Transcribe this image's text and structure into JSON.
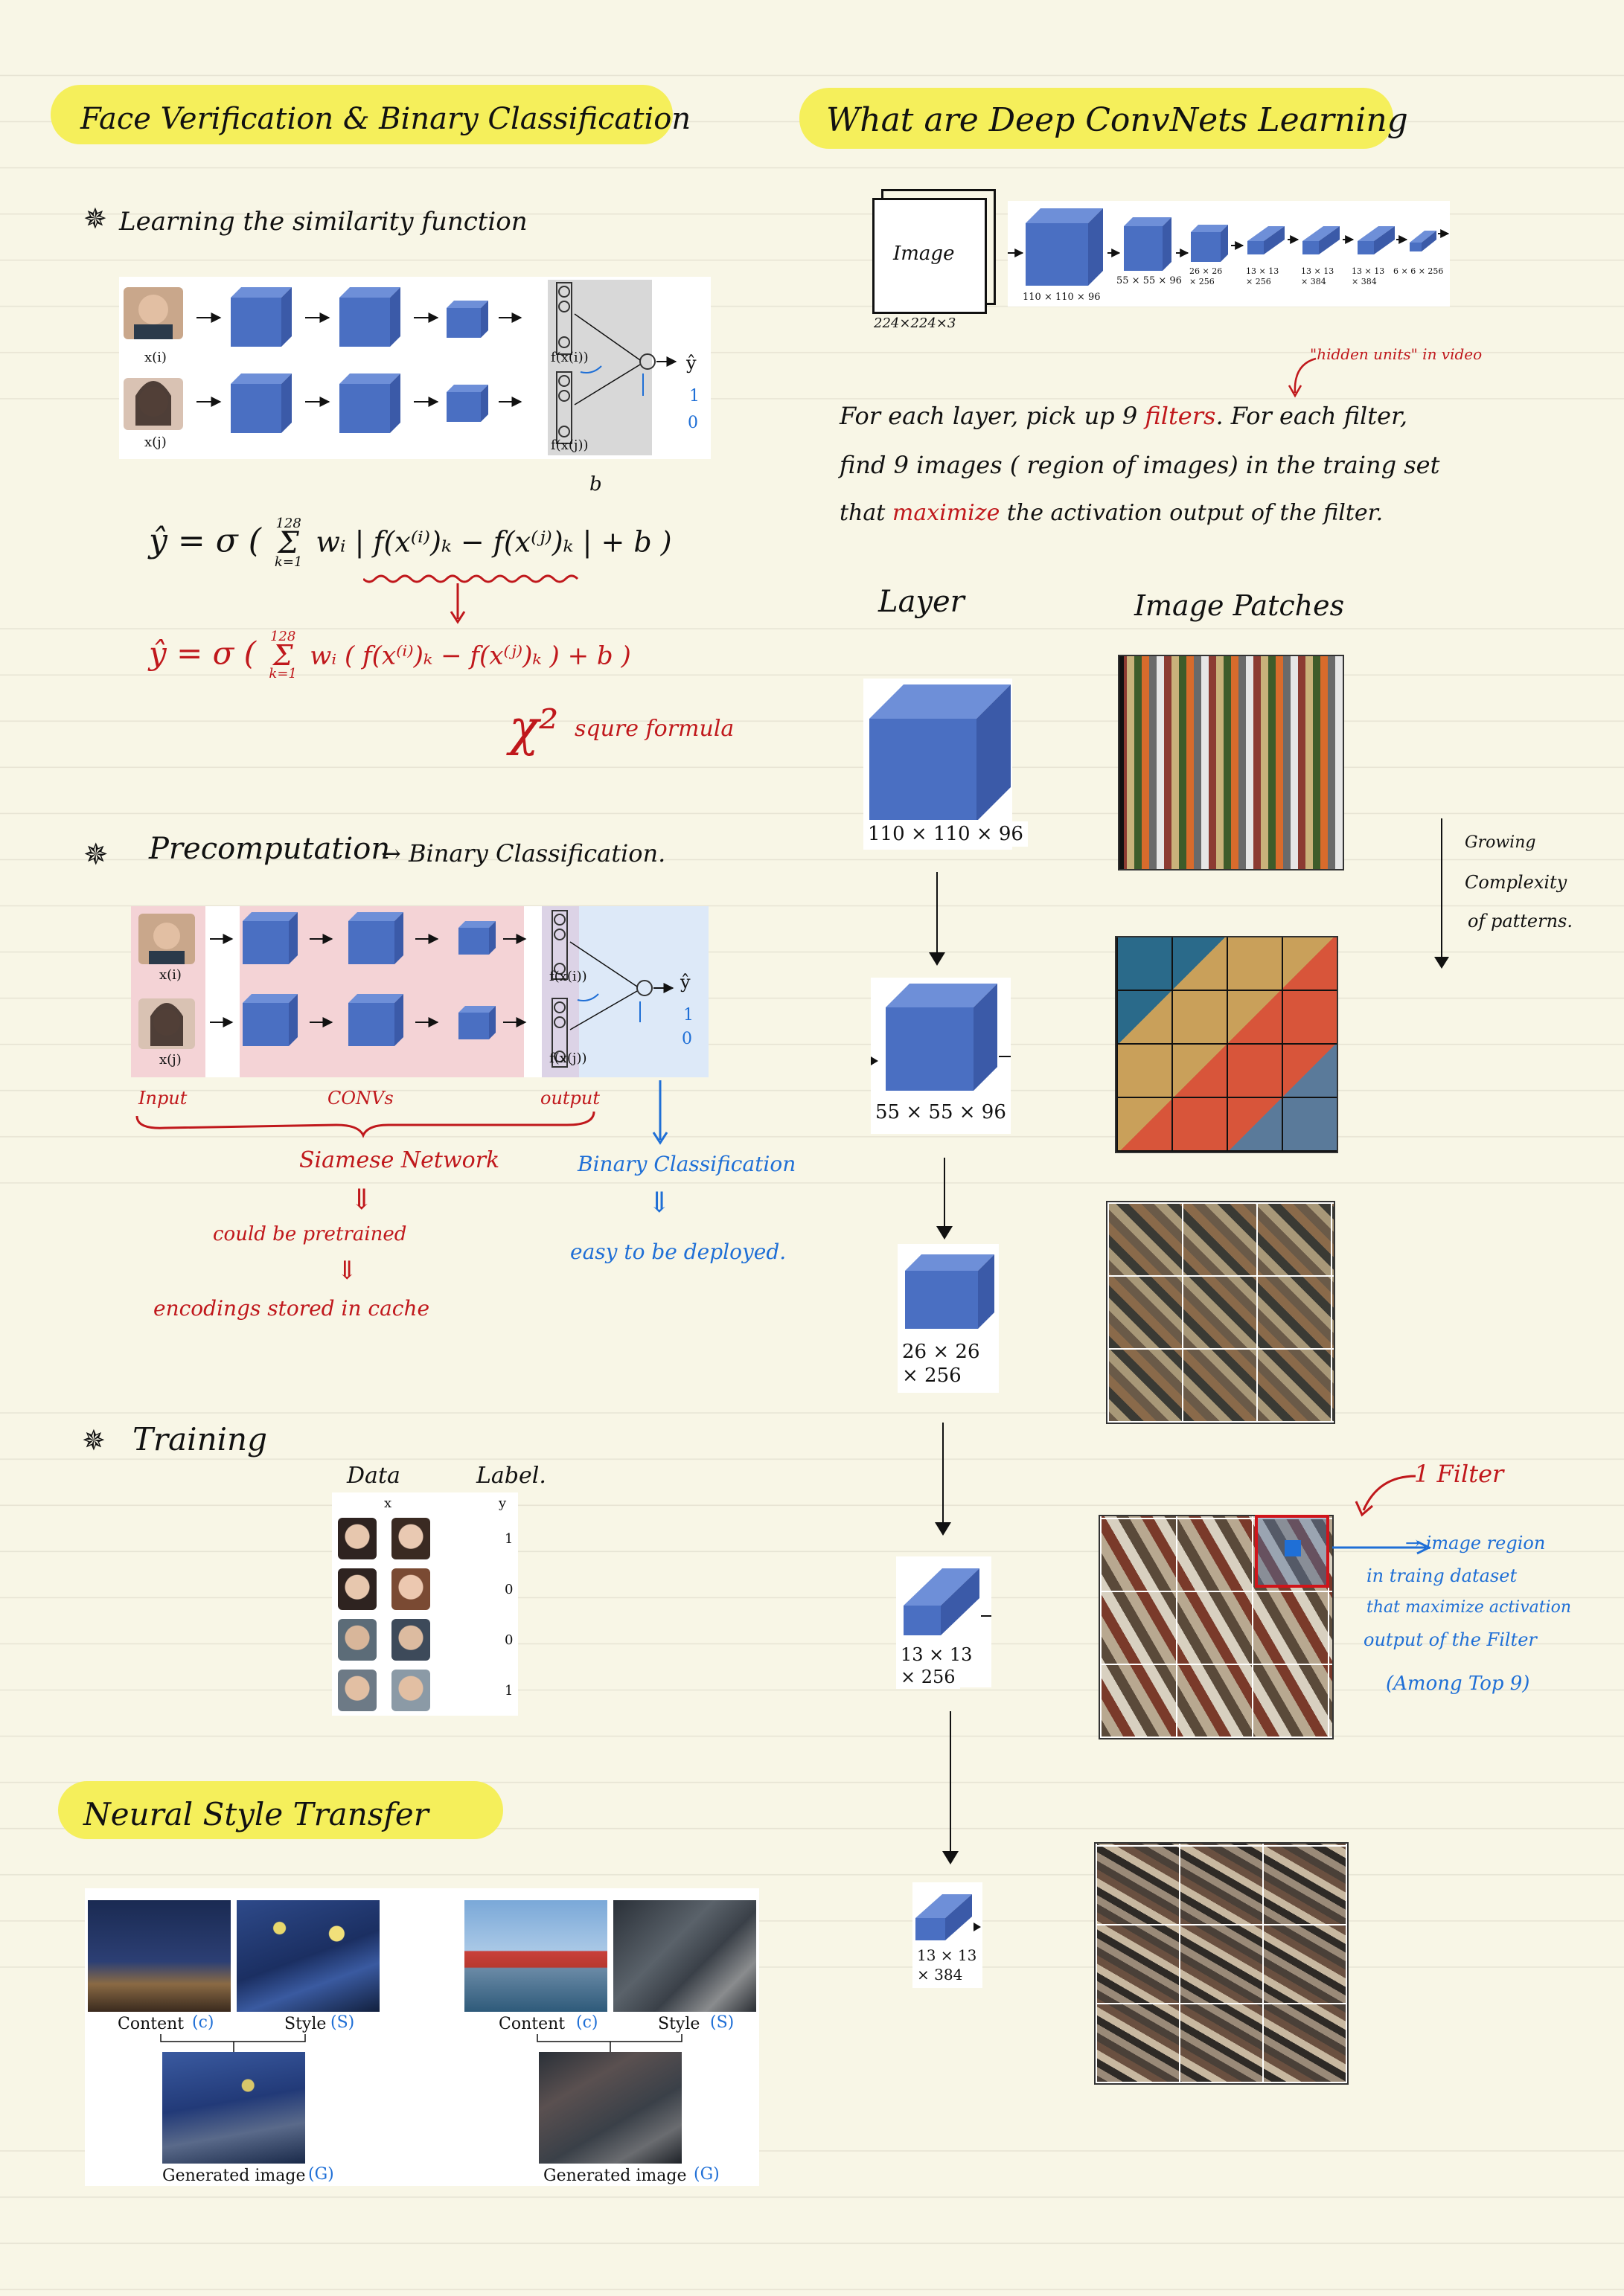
{
  "left": {
    "title": "Face Verification & Binary Classification",
    "sim_heading": "Learning the similarity function",
    "diagram1": {
      "xi": "x(i)",
      "xj": "x(j)",
      "fxi": "f(x(i))",
      "fxj": "f(x(j))",
      "yhat": "ŷ",
      "one": "1",
      "zero": "0"
    },
    "formula1": "ŷ = σ ( Σ_{k=1}^{128} w_i | f(x^(i))_k − f(x^(j))_k | + b )",
    "formula1_parts": {
      "yhat": "ŷ",
      "eq": "= σ (",
      "sum": "Σ",
      "upper": "128",
      "lower": "k=1",
      "body": "wᵢ | f(x⁽ⁱ⁾)ₖ − f(x⁽ʲ⁾)ₖ | + b )",
      "b_mark": "b"
    },
    "formula2_parts": {
      "yhat": "ŷ",
      "eq": "= σ (",
      "sum": "Σ",
      "upper": "128",
      "lower": "k=1",
      "body": "wᵢ ( f(x⁽ⁱ⁾)ₖ − f(x⁽ʲ⁾)ₖ ) + b )"
    },
    "chi": "χ²",
    "chi_label": "squre formula",
    "precomp_heading": "Precomputation",
    "precomp_arrow": "→ Binary Classification.",
    "labels": {
      "input": "Input",
      "convs": "CONVs",
      "output": "output"
    },
    "siamese": "Siamese Network",
    "pretrained": "could be pretrained",
    "encodings": "encodings stored in cache",
    "binary": "Binary Classification",
    "deployed": "easy to be deployed.",
    "training_heading": "Training",
    "data_header": "Data",
    "label_header": "Label.",
    "table_x": "x",
    "table_y": "y",
    "table_labels": [
      "1",
      "0",
      "0",
      "1"
    ],
    "nst_title": "Neural Style Transfer",
    "nst": {
      "content": "Content",
      "c": "(c)",
      "style": "Style",
      "s": "(S)",
      "generated": "Generated image",
      "g": "(G)"
    }
  },
  "right": {
    "title": "What are Deep ConvNets Learning",
    "arch": {
      "image": "Image",
      "image_dim": "224×224×3",
      "d1": "110 × 110 × 96",
      "d2": "55 × 55 × 96",
      "d3a": "26 × 26",
      "d3b": "× 256",
      "d4a": "13 × 13",
      "d4b": "× 256",
      "d5a": "13 × 13",
      "d5b": "× 384",
      "d6a": "13 × 13",
      "d6b": "× 384",
      "d7": "6 × 6 × 256"
    },
    "hidden_units": "\"hidden units\" in video",
    "para_line1_a": "For each layer, pick up 9",
    "para_line1_b": "filters",
    "para_line1_c": ". For each filter,",
    "para_line2": "find 9 images ( region of images) in the traing set",
    "para_line3_a": "that",
    "para_line3_b": "maximize",
    "para_line3_c": "the activation output of the filter.",
    "layer_header": "Layer",
    "patches_header": "Image Patches",
    "layers": [
      {
        "a": "110 × 110 × 96",
        "b": ""
      },
      {
        "a": "55 × 55 × 96",
        "b": ""
      },
      {
        "a": "26 × 26",
        "b": "× 256"
      },
      {
        "a": "13 × 13",
        "b": "× 256"
      },
      {
        "a": "13 × 13",
        "b": "× 384"
      }
    ],
    "growing": [
      "Growing",
      "Complexity",
      "of patterns."
    ],
    "one_filter": "1 Filter",
    "region_note": [
      "→ image region",
      "in traing dataset",
      "that maximize activation",
      "output of the Filter",
      "(Among Top 9)"
    ]
  },
  "colors": {
    "highlight": "#f5ef5b",
    "red": "#c0181c",
    "blue": "#1f6fd6",
    "cube": "#4a6fc2"
  }
}
